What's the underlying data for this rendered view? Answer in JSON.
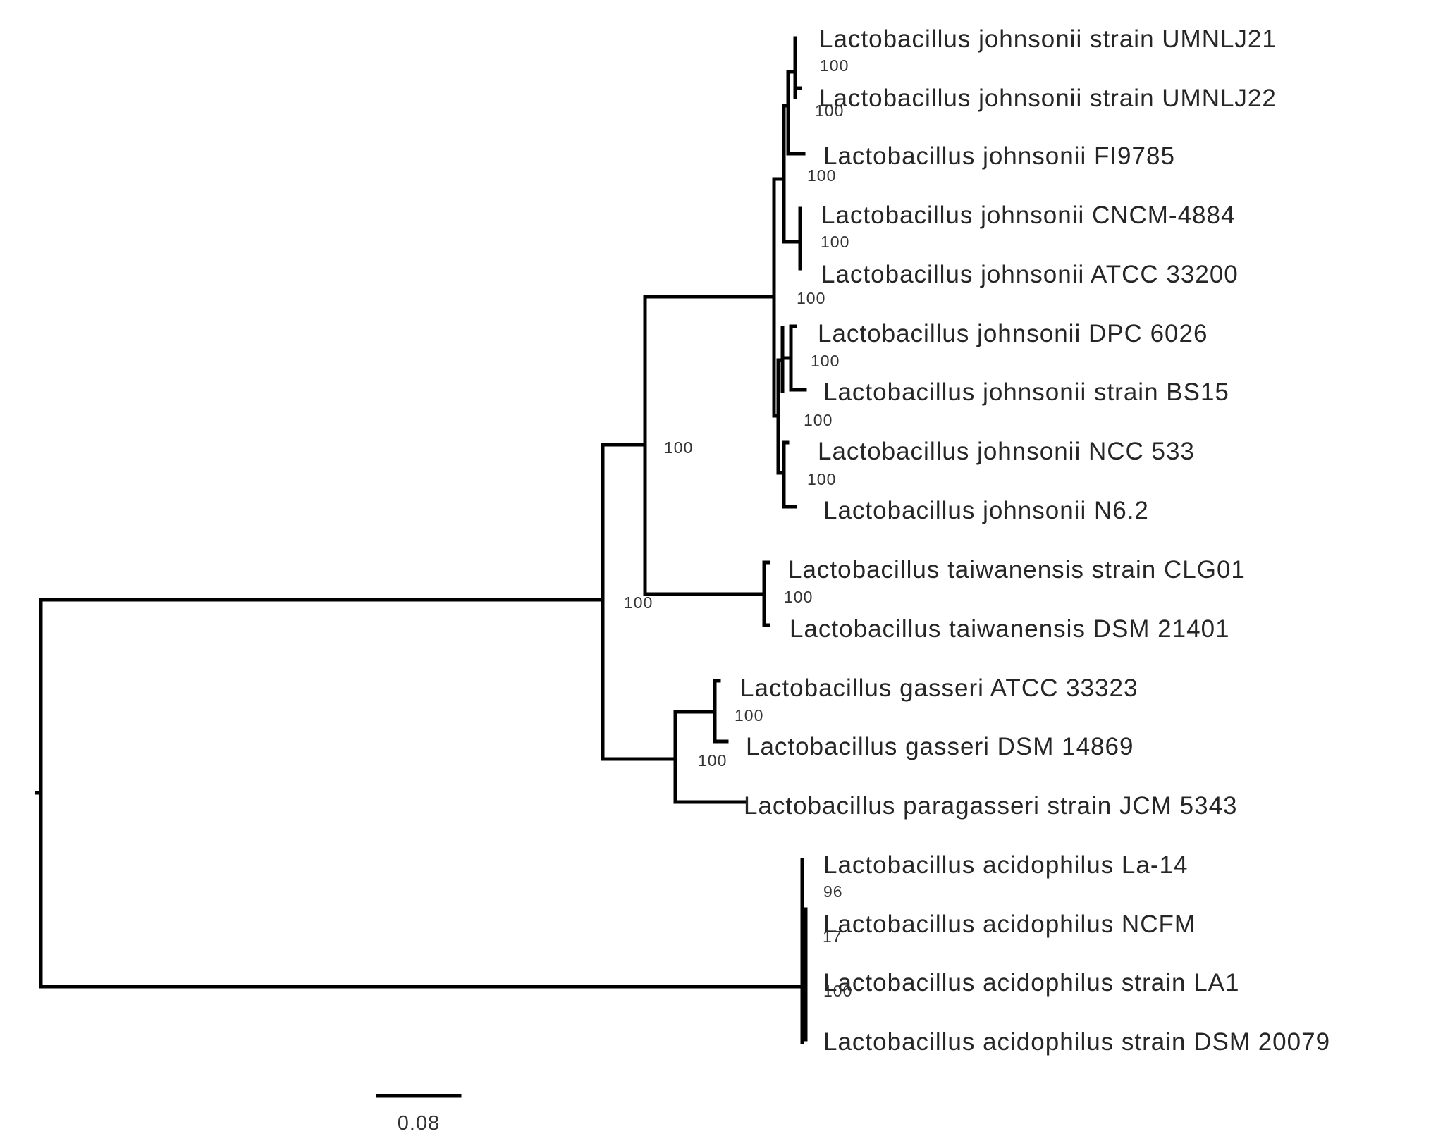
{
  "tree": {
    "leaves": [
      "Lactobacillus johnsonii strain UMNLJ21",
      "Lactobacillus johnsonii strain UMNLJ22",
      "Lactobacillus johnsonii FI9785",
      "Lactobacillus johnsonii CNCM-4884",
      "Lactobacillus johnsonii ATCC 33200",
      "Lactobacillus johnsonii DPC 6026",
      "Lactobacillus johnsonii strain BS15",
      "Lactobacillus johnsonii NCC 533",
      "Lactobacillus johnsonii N6.2",
      "Lactobacillus taiwanensis strain CLG01",
      "Lactobacillus taiwanensis DSM 21401",
      "Lactobacillus gasseri ATCC 33323",
      "Lactobacillus gasseri DSM 14869",
      "Lactobacillus paragasseri strain JCM 5343",
      "Lactobacillus acidophilus La-14",
      "Lactobacillus acidophilus NCFM",
      "Lactobacillus acidophilus strain LA1",
      "Lactobacillus acidophilus strain DSM 20079"
    ],
    "support_values": [
      "100",
      "100",
      "100",
      "100",
      "100",
      "100",
      "100",
      "100",
      "100",
      "100",
      "100",
      "100",
      "100",
      "96",
      "17",
      "100"
    ],
    "scale_bar_label": "0.08"
  }
}
